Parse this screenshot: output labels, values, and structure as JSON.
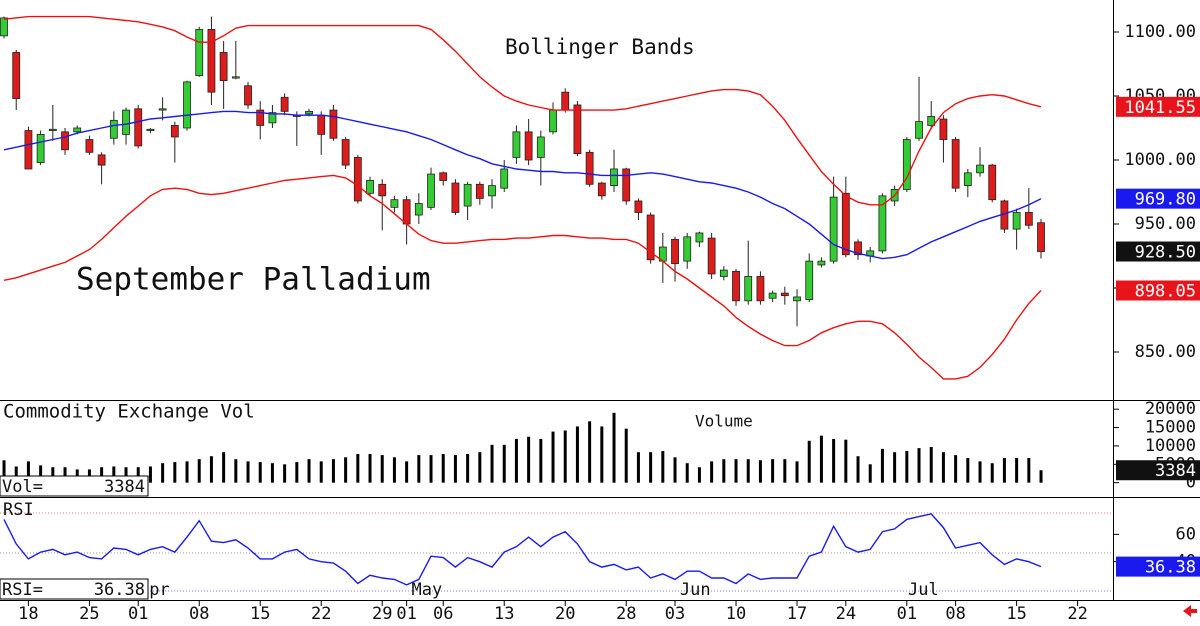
{
  "chart_data": [
    {
      "type": "candlestick",
      "title": "September Palladium",
      "annotation": "Bollinger Bands",
      "up_color": "#33cc33",
      "down_color": "#dd1c1c",
      "xlim": [
        -0.33,
        90.9
      ],
      "xticks": [
        {
          "value": 2,
          "label": "18"
        },
        {
          "value": 7,
          "label": "25"
        },
        {
          "value": 11,
          "label": "01"
        },
        {
          "value": 16,
          "label": "08"
        },
        {
          "value": 21,
          "label": "15"
        },
        {
          "value": 26,
          "label": "22"
        },
        {
          "value": 31,
          "label": "29"
        },
        {
          "value": 33,
          "label": "01"
        },
        {
          "value": 36,
          "label": "06"
        },
        {
          "value": 41,
          "label": "13"
        },
        {
          "value": 46,
          "label": "20"
        },
        {
          "value": 51,
          "label": "28"
        },
        {
          "value": 55,
          "label": "03"
        },
        {
          "value": 60,
          "label": "10"
        },
        {
          "value": 65,
          "label": "17"
        },
        {
          "value": 69,
          "label": "24"
        },
        {
          "value": 74,
          "label": "01"
        },
        {
          "value": 78,
          "label": "08"
        },
        {
          "value": 83,
          "label": "15"
        },
        {
          "value": 88,
          "label": "22"
        }
      ],
      "month_labels": [
        {
          "value": 11.9,
          "label": "pr"
        },
        {
          "value": 33.4,
          "label": "May"
        },
        {
          "value": 55.4,
          "label": "Jun"
        },
        {
          "value": 74.1,
          "label": "Jul"
        }
      ],
      "ylim": [
        812.5,
        1125
      ],
      "yticks": [
        {
          "value": 850,
          "label": "850.00"
        },
        {
          "value": 900,
          "label": "900.00"
        },
        {
          "value": 950,
          "label": "950.00"
        },
        {
          "value": 1000,
          "label": "1000.00"
        },
        {
          "value": 1050,
          "label": "1050.00"
        },
        {
          "value": 1100,
          "label": "1100.00"
        }
      ],
      "open": [
        1097,
        1084,
        1023,
        998,
        1023,
        1022,
        1022,
        1016,
        1004,
        1017,
        1020,
        1040,
        1023,
        1039,
        1027,
        1025,
        1066,
        1102,
        1084,
        1064,
        1058,
        1039,
        1029,
        1049,
        1035,
        1036,
        1035,
        1039,
        1016,
        1002,
        974,
        981,
        963,
        969,
        957,
        963,
        990,
        982,
        964,
        981,
        972,
        978,
        1002,
        1022,
        1002,
        1022,
        1053,
        1043,
        1006,
        982,
        980,
        993,
        968,
        957,
        921,
        938,
        921,
        936,
        939,
        909,
        913,
        890,
        909,
        892,
        896,
        890,
        891,
        918,
        921,
        974,
        936,
        925,
        929,
        968,
        977,
        1017,
        1027,
        1032,
        1016,
        980,
        990,
        996,
        968,
        946,
        959,
        951
      ],
      "high": [
        1112,
        1086,
        1026,
        1023,
        1043,
        1025,
        1027,
        1019,
        1006,
        1038,
        1041,
        1043,
        1025,
        1049,
        1030,
        1062,
        1104,
        1112,
        1093,
        1093,
        1061,
        1046,
        1043,
        1052,
        1038,
        1040,
        1038,
        1043,
        1018,
        1004,
        987,
        985,
        972,
        972,
        974,
        994,
        991,
        985,
        983,
        983,
        985,
        1000,
        1027,
        1032,
        1023,
        1045,
        1056,
        1046,
        1008,
        983,
        1008,
        994,
        970,
        959,
        943,
        940,
        943,
        944,
        943,
        917,
        915,
        937,
        913,
        898,
        901,
        899,
        927,
        924,
        987,
        987,
        938,
        932,
        974,
        980,
        1018,
        1065,
        1046,
        1035,
        1018,
        993,
        1010,
        997,
        969,
        962,
        978,
        954
      ],
      "low": [
        1095,
        1039,
        993,
        996,
        1015,
        1004,
        1020,
        1004,
        981,
        1012,
        1012,
        1009,
        1021,
        1031,
        998,
        1023,
        1065,
        1043,
        1040,
        1063,
        1040,
        1016,
        1025,
        1035,
        1011,
        1034,
        1004,
        1015,
        993,
        966,
        972,
        945,
        959,
        934,
        950,
        961,
        980,
        957,
        953,
        965,
        962,
        975,
        997,
        996,
        980,
        1020,
        1037,
        1003,
        979,
        969,
        975,
        965,
        953,
        919,
        904,
        905,
        915,
        932,
        907,
        906,
        886,
        887,
        887,
        889,
        887,
        870,
        889,
        916,
        919,
        924,
        922,
        920,
        927,
        964,
        975,
        1015,
        1024,
        998,
        975,
        971,
        987,
        967,
        943,
        930,
        946,
        923
      ],
      "close": [
        1111,
        1048,
        993,
        1020,
        1024,
        1008,
        1025,
        1006,
        996,
        1031,
        1039,
        1011,
        1024,
        1040,
        1018,
        1061,
        1102,
        1053,
        1062,
        1065,
        1043,
        1027,
        1037,
        1038,
        1034,
        1038,
        1020,
        1017,
        996,
        968,
        984,
        972,
        969,
        950,
        966,
        989,
        984,
        959,
        981,
        970,
        980,
        993,
        1022,
        1000,
        1018,
        1039,
        1039,
        1005,
        981,
        972,
        993,
        968,
        959,
        922,
        932,
        919,
        940,
        943,
        911,
        914,
        890,
        909,
        890,
        896,
        894,
        893,
        921,
        921,
        971,
        926,
        926,
        929,
        972,
        977,
        1016,
        1030,
        1034,
        1016,
        978,
        990,
        996,
        969,
        946,
        959,
        949,
        928.5
      ],
      "upper_band": {
        "color": "#ee1111",
        "values": [
          1110,
          1111,
          1112,
          1112,
          1112,
          1112,
          1112,
          1112,
          1111,
          1110,
          1109,
          1108,
          1106,
          1104,
          1101,
          1096,
          1092,
          1092,
          1097,
          1103,
          1105,
          1105,
          1105,
          1105,
          1105,
          1105,
          1105,
          1105,
          1105,
          1105,
          1105,
          1105,
          1105,
          1105,
          1105,
          1102,
          1094,
          1085,
          1075,
          1065,
          1057,
          1050,
          1046,
          1043,
          1041,
          1039,
          1039,
          1039,
          1039,
          1039,
          1039,
          1040,
          1042,
          1044,
          1046,
          1048,
          1050,
          1052,
          1054,
          1055,
          1055,
          1054,
          1051,
          1042,
          1031,
          1017,
          1004,
          991,
          981,
          972,
          967,
          965,
          965,
          972,
          986,
          1007,
          1025,
          1037,
          1044,
          1048,
          1050,
          1051,
          1050,
          1047,
          1044,
          1041.55
        ]
      },
      "middle_band": {
        "color": "#1a1aee",
        "values": [
          1008,
          1010,
          1012,
          1014,
          1016,
          1018,
          1021,
          1023,
          1025,
          1027,
          1028,
          1030,
          1032,
          1033,
          1034,
          1035,
          1036,
          1037,
          1038,
          1038,
          1037,
          1037,
          1036,
          1036,
          1035,
          1035,
          1035,
          1034,
          1032,
          1030,
          1028,
          1026,
          1024,
          1022,
          1019,
          1016,
          1012,
          1008,
          1004,
          1001,
          997,
          995,
          993,
          992,
          991,
          991,
          990,
          990,
          989,
          988,
          988,
          988,
          989,
          990,
          989,
          987,
          985,
          983,
          982,
          980,
          978,
          975,
          971,
          966,
          962,
          956,
          950,
          942,
          934,
          930,
          927,
          925,
          923,
          924,
          926,
          931,
          936,
          940,
          944,
          948,
          952,
          955,
          958,
          961,
          965,
          969.8
        ]
      },
      "lower_band": {
        "color": "#ee1111",
        "values": [
          906,
          908,
          911,
          914,
          917,
          920,
          925,
          930,
          938,
          947,
          956,
          964,
          972,
          977,
          978,
          977,
          974,
          973,
          974,
          976,
          978,
          980,
          982,
          984,
          985,
          986,
          987,
          988,
          986,
          980,
          972,
          966,
          958,
          950,
          942,
          937,
          935,
          935,
          936,
          937,
          938,
          938,
          939,
          939,
          940,
          941,
          941,
          940,
          939,
          939,
          938,
          938,
          935,
          928,
          921,
          913,
          907,
          900,
          893,
          886,
          877,
          870,
          864,
          859,
          855,
          855,
          859,
          865,
          869,
          872,
          874,
          874,
          872,
          865,
          856,
          846,
          838,
          829,
          829,
          831,
          838,
          848,
          860,
          875,
          888,
          898.05
        ]
      },
      "price_markers": [
        {
          "value": 1041.55,
          "label": "1041.55",
          "color": "#e8141c"
        },
        {
          "value": 969.8,
          "label": "969.80",
          "color": "#1a1aee"
        },
        {
          "value": 928.5,
          "label": "928.50",
          "color": "#111111"
        },
        {
          "value": 898.05,
          "label": "898.05",
          "color": "#e8141c"
        }
      ]
    },
    {
      "type": "bar",
      "title": "Commodity Exchange Vol",
      "annotation": "Volume",
      "color": "#000000",
      "ylim": [
        -3900,
        22500
      ],
      "yticks": [
        0,
        5000,
        10000,
        15000,
        20000
      ],
      "values": [
        6100,
        4400,
        5800,
        4700,
        4200,
        4200,
        3600,
        3600,
        4200,
        4400,
        4200,
        4200,
        4400,
        5300,
        5600,
        5800,
        6400,
        7200,
        8300,
        6400,
        5800,
        5600,
        5300,
        5000,
        5600,
        6400,
        5800,
        6400,
        6900,
        7800,
        7800,
        7500,
        6900,
        5800,
        7500,
        7500,
        7800,
        7500,
        7800,
        8300,
        10300,
        10300,
        11900,
        12500,
        11900,
        13900,
        14200,
        15300,
        16700,
        15300,
        19000,
        14700,
        8300,
        8300,
        8600,
        6900,
        5300,
        4200,
        5800,
        6400,
        6400,
        6400,
        6100,
        6400,
        6400,
        5800,
        11400,
        12800,
        11900,
        11700,
        7200,
        5000,
        9200,
        8300,
        8600,
        9400,
        9700,
        8300,
        7500,
        6700,
        5800,
        5300,
        6700,
        6700,
        6700,
        3384
      ],
      "last_label": "Vol=",
      "last_value": 3384,
      "marker_color": "#111111"
    },
    {
      "type": "line",
      "title": "RSI",
      "color": "#1a1aee",
      "ylim": [
        11.9,
        87.4
      ],
      "yticks": [
        40,
        60
      ],
      "values": [
        71,
        53,
        42,
        47,
        49,
        45,
        47,
        43,
        42,
        50,
        49,
        45,
        49,
        51,
        47,
        58,
        70,
        55,
        54,
        56,
        50,
        42,
        42,
        47,
        49,
        42,
        40,
        39,
        33,
        24,
        30,
        28,
        27,
        23,
        27,
        44,
        43,
        36,
        43,
        40,
        36,
        47,
        51,
        58,
        51,
        58,
        62,
        53,
        40,
        36,
        38,
        34,
        36,
        28,
        31,
        27,
        33,
        33,
        28,
        28,
        24,
        31,
        27,
        28,
        28,
        28,
        44,
        47,
        66,
        51,
        47,
        49,
        62,
        64,
        71,
        73,
        75,
        65,
        50,
        52,
        54,
        45,
        38,
        42,
        40,
        36.38
      ],
      "last_label": "RSI=",
      "last_value": 36.38,
      "marker_color": "#1a1aee"
    }
  ]
}
